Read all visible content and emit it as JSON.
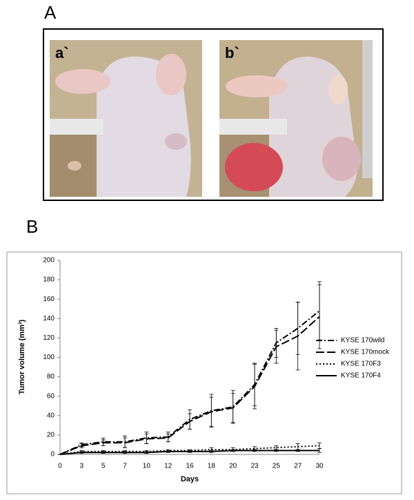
{
  "panels": {
    "top_label": "A",
    "photo_labels": [
      "a`",
      "b`"
    ],
    "bottom_label": "B"
  },
  "chart_data": {
    "type": "line",
    "x_label": "Days",
    "y_label": "Tumor volume (mm³)",
    "categories": [
      "0",
      "3",
      "5",
      "7",
      "10",
      "12",
      "16",
      "18",
      "20",
      "23",
      "25",
      "27",
      "30"
    ],
    "ylim": [
      0,
      200
    ],
    "yticks": [
      0,
      20,
      40,
      60,
      80,
      100,
      120,
      140,
      160,
      180,
      200
    ],
    "grid": false,
    "legend": "right",
    "series": [
      {
        "name": "KYSE 170wild",
        "color": "#000000",
        "dash": "dash-dot",
        "values": [
          0,
          10,
          13,
          13,
          17,
          18,
          36,
          45,
          49,
          72,
          115,
          130,
          148
        ],
        "errors": [
          0,
          2,
          4,
          6,
          6,
          5,
          10,
          17,
          17,
          22,
          15,
          27,
          30
        ]
      },
      {
        "name": "KYSE 170mock",
        "color": "#000000",
        "dash": "long-dash",
        "values": [
          0,
          9,
          12,
          12,
          16,
          17,
          34,
          44,
          48,
          70,
          111,
          122,
          142
        ],
        "errors": [
          0,
          2,
          3,
          5,
          5,
          4,
          8,
          15,
          15,
          23,
          17,
          35,
          33
        ]
      },
      {
        "name": "KYSE 170F3",
        "color": "#000000",
        "dash": "dotted",
        "values": [
          0,
          3,
          3,
          3,
          3,
          4,
          4,
          5,
          5,
          6,
          7,
          8,
          9
        ],
        "errors": [
          0,
          1,
          1,
          1,
          1,
          1,
          1,
          2,
          2,
          2,
          2,
          3,
          3
        ]
      },
      {
        "name": "KYSE 170F4",
        "color": "#000000",
        "dash": "solid",
        "values": [
          0,
          2,
          2,
          2,
          2,
          3,
          3,
          3,
          4,
          4,
          4,
          4,
          4
        ],
        "errors": [
          0,
          1,
          1,
          1,
          1,
          1,
          1,
          1,
          1,
          1,
          1,
          1,
          2
        ]
      }
    ]
  }
}
